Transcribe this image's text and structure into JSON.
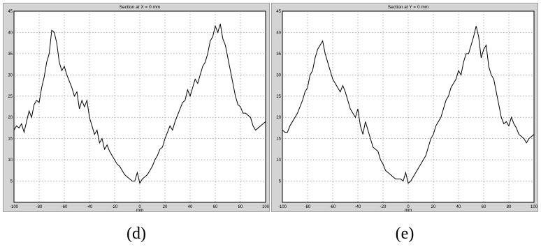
{
  "chart_data": [
    {
      "type": "line",
      "title": "Section at X = 0 mm",
      "xlabel": "mm",
      "ylabel": "",
      "xlim": [
        -100,
        100
      ],
      "ylim": [
        0,
        45
      ],
      "xticks": [
        -100,
        -80,
        -60,
        -40,
        -20,
        0,
        20,
        40,
        60,
        80,
        100
      ],
      "yticks": [
        5,
        10,
        15,
        20,
        25,
        30,
        35,
        40,
        45
      ],
      "grid": true,
      "caption": "(d)",
      "series": [
        {
          "x": [
            -100,
            -98,
            -96,
            -94,
            -92,
            -90,
            -88,
            -86,
            -84,
            -82,
            -80,
            -78,
            -76,
            -74,
            -72,
            -70,
            -68,
            -66,
            -64,
            -62,
            -60,
            -58,
            -56,
            -54,
            -52,
            -50,
            -48,
            -46,
            -44,
            -42,
            -40,
            -38,
            -36,
            -34,
            -32,
            -30,
            -28,
            -26,
            -24,
            -22,
            -20,
            -18,
            -16,
            -14,
            -12,
            -10,
            -8,
            -6,
            -4,
            -2,
            0,
            2,
            4,
            6,
            8,
            10,
            12,
            14,
            16,
            18,
            20,
            22,
            24,
            26,
            28,
            30,
            32,
            34,
            36,
            38,
            40,
            42,
            44,
            46,
            48,
            50,
            52,
            54,
            56,
            58,
            60,
            62,
            64,
            66,
            68,
            70,
            72,
            74,
            76,
            78,
            80,
            82,
            84,
            86,
            88,
            90,
            92,
            94,
            96,
            98,
            100
          ],
          "y": [
            17,
            18,
            17.5,
            18.5,
            16.5,
            19,
            21.5,
            20,
            23,
            24,
            23.5,
            27,
            29.5,
            33,
            35,
            40.5,
            40,
            37.5,
            33,
            31,
            32,
            30,
            28.5,
            27,
            25,
            26,
            22,
            24,
            22.5,
            24,
            20,
            18,
            16,
            17,
            14,
            15,
            12.5,
            13.5,
            12,
            11,
            10,
            9,
            8.5,
            7.5,
            6.5,
            6,
            5.5,
            5,
            5,
            7,
            4.5,
            5.5,
            6,
            6.5,
            7.5,
            8.5,
            10,
            11,
            12.5,
            13,
            15,
            16.5,
            18,
            17,
            19,
            20.5,
            22,
            23.5,
            24,
            26.5,
            25,
            27,
            29,
            28,
            30,
            32,
            33,
            35,
            38,
            39,
            41.5,
            40,
            42,
            38.5,
            37,
            34,
            31,
            28,
            25,
            23,
            22.5,
            21,
            21,
            20.5,
            20,
            18,
            17,
            17.5,
            18,
            18.5,
            19
          ]
        }
      ]
    },
    {
      "type": "line",
      "title": "Section at Y = 0 mm",
      "xlabel": "mm",
      "ylabel": "",
      "xlim": [
        -100,
        100
      ],
      "ylim": [
        0,
        45
      ],
      "xticks": [
        -100,
        -80,
        -60,
        -40,
        -20,
        0,
        20,
        40,
        60,
        80,
        100
      ],
      "yticks": [
        5,
        10,
        15,
        20,
        25,
        30,
        35,
        40,
        45
      ],
      "grid": true,
      "caption": "(e)",
      "series": [
        {
          "x": [
            -100,
            -98,
            -96,
            -94,
            -92,
            -90,
            -88,
            -86,
            -84,
            -82,
            -80,
            -78,
            -76,
            -74,
            -72,
            -70,
            -68,
            -66,
            -64,
            -62,
            -60,
            -58,
            -56,
            -54,
            -52,
            -50,
            -48,
            -46,
            -44,
            -42,
            -40,
            -38,
            -36,
            -34,
            -32,
            -30,
            -28,
            -26,
            -24,
            -22,
            -20,
            -18,
            -16,
            -14,
            -12,
            -10,
            -8,
            -6,
            -4,
            -2,
            0,
            2,
            4,
            6,
            8,
            10,
            12,
            14,
            16,
            18,
            20,
            22,
            24,
            26,
            28,
            30,
            32,
            34,
            36,
            38,
            40,
            42,
            44,
            46,
            48,
            50,
            52,
            54,
            56,
            58,
            60,
            62,
            64,
            66,
            68,
            70,
            72,
            74,
            76,
            78,
            80,
            82,
            84,
            86,
            88,
            90,
            92,
            94,
            96,
            98,
            100
          ],
          "y": [
            17,
            16.5,
            16.5,
            18,
            19,
            20,
            21,
            22.5,
            24,
            26,
            27,
            30,
            31,
            34,
            36,
            37,
            38,
            35,
            33,
            31,
            29,
            28,
            27,
            26,
            27.5,
            26,
            24,
            22,
            21,
            20,
            22,
            18,
            16,
            19,
            17,
            15,
            13,
            12.5,
            12,
            10,
            9,
            7.5,
            7,
            6.5,
            6,
            5.5,
            5.5,
            5.5,
            5,
            7,
            4.5,
            5,
            6,
            7,
            8,
            9,
            10,
            11,
            13,
            15,
            16,
            18,
            19,
            20,
            22,
            24,
            25,
            27,
            28,
            29,
            31,
            30,
            33,
            35,
            35,
            37,
            39,
            41.5,
            39,
            34,
            36,
            37,
            32,
            30,
            29,
            26,
            23,
            20,
            18.5,
            19,
            18,
            20,
            18.5,
            17.5,
            16,
            15.5,
            15,
            14,
            15,
            15.5,
            16
          ]
        }
      ]
    }
  ]
}
